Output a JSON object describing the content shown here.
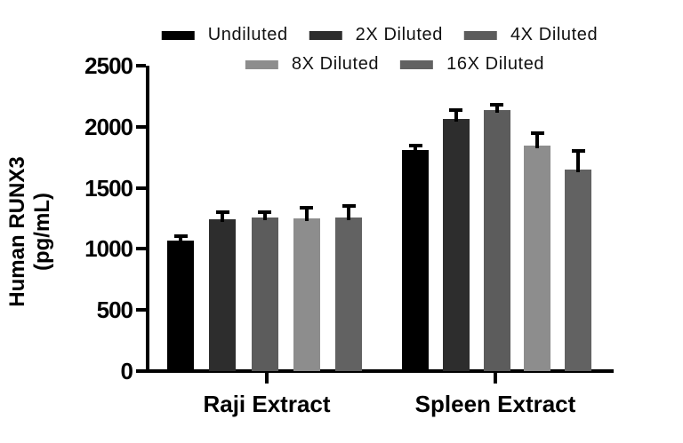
{
  "chart_data": {
    "type": "bar",
    "title": "",
    "ylabel": "Human RUNX3 (pg/mL)",
    "xlabel": "",
    "ylim": [
      0,
      2500
    ],
    "yticks": [
      0,
      500,
      1000,
      1500,
      2000,
      2500
    ],
    "grid": false,
    "legend_position": "top-center-two-rows",
    "categories": [
      "Raji Extract",
      "Spleen Extract"
    ],
    "series": [
      {
        "name": "Undiluted",
        "color": "#000000",
        "values": [
          1065,
          1810
        ],
        "errors_plus": [
          25,
          25
        ]
      },
      {
        "name": "2X Diluted",
        "color": "#2d2d2d",
        "values": [
          1240,
          2065
        ],
        "errors_plus": [
          45,
          55
        ]
      },
      {
        "name": "4X Diluted",
        "color": "#5c5c5c",
        "values": [
          1255,
          2135
        ],
        "errors_plus": [
          30,
          30
        ]
      },
      {
        "name": "8X Diluted",
        "color": "#8d8d8d",
        "values": [
          1250,
          1845
        ],
        "errors_plus": [
          75,
          90
        ]
      },
      {
        "name": "16X Diluted",
        "color": "#626262",
        "values": [
          1255,
          1650
        ],
        "errors_plus": [
          80,
          135
        ]
      }
    ],
    "legend_rows": [
      [
        "Undiluted",
        "2X Diluted",
        "4X Diluted"
      ],
      [
        "8X Diluted",
        "16X Diluted"
      ]
    ],
    "error_bar_color": "#000000",
    "axis_color": "#000000",
    "background_color": "#ffffff"
  }
}
